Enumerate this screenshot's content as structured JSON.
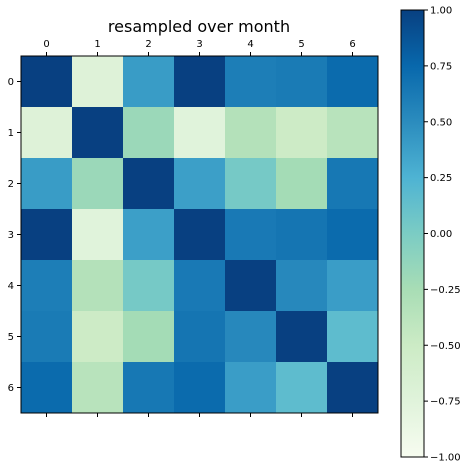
{
  "chart_data": {
    "type": "heatmap",
    "title": "resampled over month",
    "x_tick_labels": [
      "0",
      "1",
      "2",
      "3",
      "4",
      "5",
      "6"
    ],
    "y_tick_labels": [
      "0",
      "1",
      "2",
      "3",
      "4",
      "5",
      "6"
    ],
    "values": [
      [
        1.0,
        -0.72,
        0.4,
        1.0,
        0.6,
        0.62,
        0.73
      ],
      [
        -0.72,
        1.0,
        -0.18,
        -0.75,
        -0.33,
        -0.51,
        -0.36
      ],
      [
        0.4,
        -0.18,
        1.0,
        0.38,
        0.03,
        -0.23,
        0.64
      ],
      [
        1.0,
        -0.75,
        0.38,
        1.0,
        0.63,
        0.66,
        0.73
      ],
      [
        0.6,
        -0.33,
        0.03,
        0.63,
        1.0,
        0.53,
        0.39
      ],
      [
        0.62,
        -0.51,
        -0.23,
        0.66,
        0.53,
        1.0,
        0.16
      ],
      [
        0.73,
        -0.36,
        0.64,
        0.73,
        0.39,
        0.16,
        1.0
      ]
    ],
    "colormap": "GnBu",
    "vmin": -1.0,
    "vmax": 1.0,
    "colorbar_ticks": [
      -1.0,
      -0.75,
      -0.5,
      -0.25,
      0.0,
      0.25,
      0.5,
      0.75,
      1.0
    ],
    "colorbar_tick_labels": [
      "−1.00",
      "−0.75",
      "−0.50",
      "−0.25",
      "0.00",
      "0.25",
      "0.50",
      "0.75",
      "1.00"
    ],
    "x_ticks_position": "top",
    "grid": false
  }
}
